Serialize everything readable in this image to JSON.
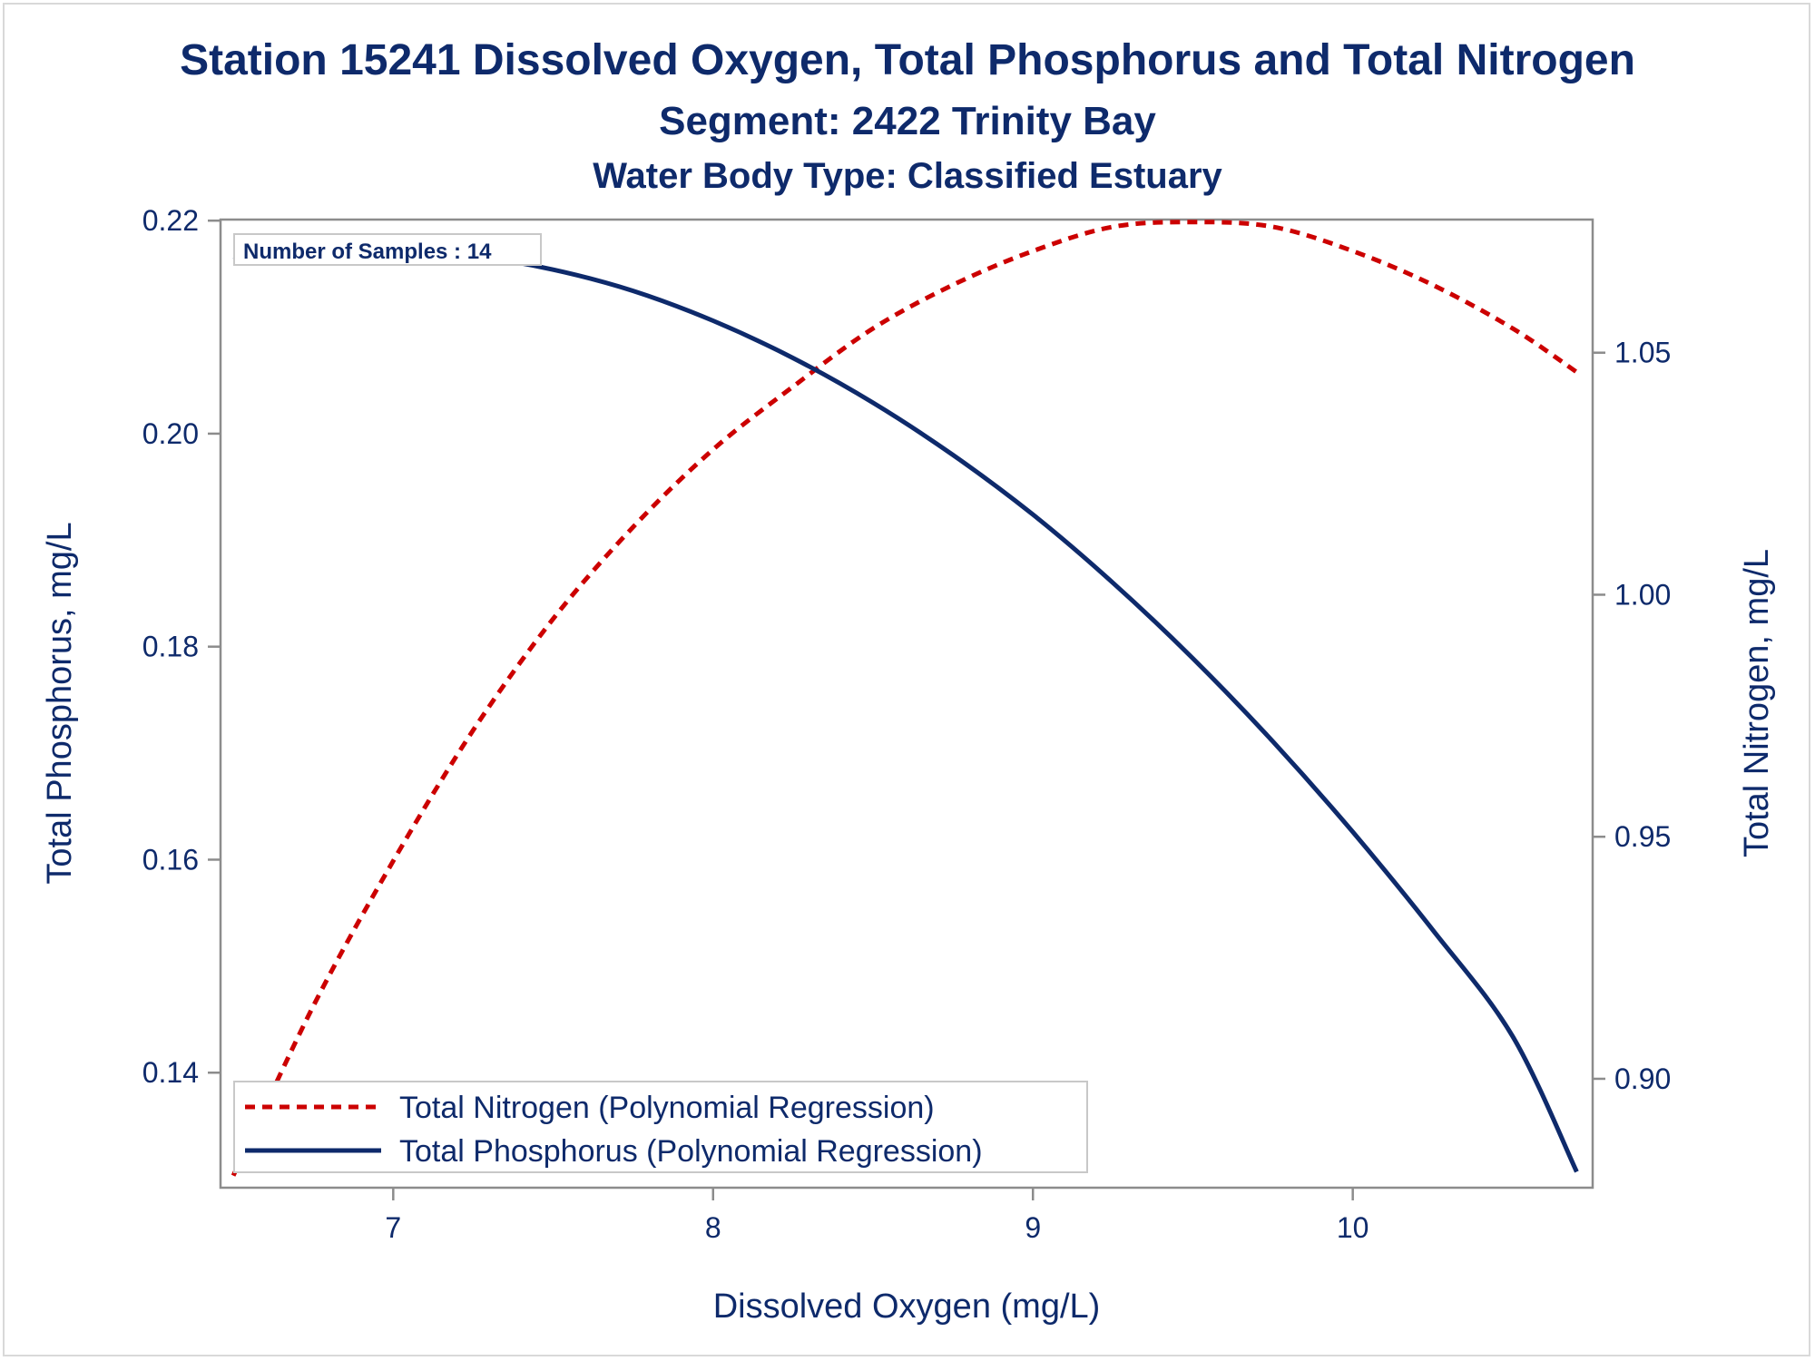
{
  "chart_data": {
    "type": "line",
    "title": "Station 15241  Dissolved Oxygen, Total Phosphorus and Total Nitrogen",
    "subtitle": "Segment: 2422  Trinity Bay",
    "subtitle2": "Water Body Type: Classified Estuary",
    "xlabel": "Dissolved Oxygen (mg/L)",
    "ylabel": "Total Phosphorus, mg/L",
    "y2label": "Total Nitrogen, mg/L",
    "xlim": [
      6.46,
      10.75
    ],
    "ylim": [
      0.1292,
      0.2201
    ],
    "y2lim": [
      0.8775,
      1.0775
    ],
    "xticks": [
      7,
      8,
      9,
      10
    ],
    "xtick_labels": [
      "7",
      "8",
      "9",
      "10"
    ],
    "yticks": [
      0.14,
      0.16,
      0.18,
      0.2,
      0.22
    ],
    "ytick_labels": [
      "0.14",
      "0.16",
      "0.18",
      "0.20",
      "0.22"
    ],
    "y2ticks": [
      0.9,
      0.95,
      1.0,
      1.05
    ],
    "y2tick_labels": [
      "0.90",
      "0.95",
      "1.00",
      "1.05"
    ],
    "grid": false,
    "inset": "Number of Samples : 14",
    "legend_position": "bottom-left",
    "series": [
      {
        "name": "Total Nitrogen (Polynomial Regression)",
        "axis": "right",
        "color": "#cc0000",
        "style": "dashed",
        "x": [
          6.5,
          6.75,
          7.0,
          7.25,
          7.5,
          7.75,
          8.0,
          8.25,
          8.5,
          8.75,
          9.0,
          9.25,
          9.5,
          9.75,
          10.0,
          10.25,
          10.5,
          10.7
        ],
        "y": [
          0.88,
          0.915,
          0.945,
          0.972,
          0.995,
          1.014,
          1.03,
          1.043,
          1.055,
          1.064,
          1.071,
          1.076,
          1.077,
          1.076,
          1.071,
          1.064,
          1.055,
          1.046
        ]
      },
      {
        "name": "Total Phosphorus (Polynomial Regression)",
        "axis": "left",
        "color": "#0e2a6b",
        "style": "solid",
        "x": [
          6.5,
          6.75,
          7.0,
          7.25,
          7.5,
          7.75,
          8.0,
          8.25,
          8.5,
          8.75,
          9.0,
          9.25,
          9.5,
          9.75,
          10.0,
          10.25,
          10.5,
          10.7
        ],
        "y": [
          0.2163,
          0.2172,
          0.2173,
          0.2167,
          0.2154,
          0.2134,
          0.2106,
          0.2071,
          0.2029,
          0.198,
          0.1924,
          0.186,
          0.1789,
          0.1711,
          0.1626,
          0.1534,
          0.1434,
          0.1307
        ]
      }
    ]
  }
}
